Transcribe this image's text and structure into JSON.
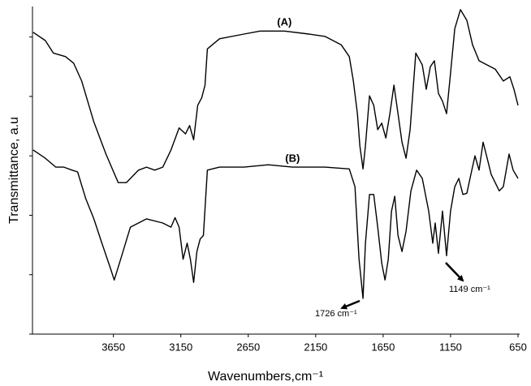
{
  "chart_data": {
    "type": "line",
    "xlabel": "Wavenumbers,cm⁻¹",
    "ylabel": "Transmittance, a.u",
    "xlim": [
      4250,
      650
    ],
    "xticks": [
      3650,
      3150,
      2650,
      2150,
      1650,
      1150,
      650
    ],
    "ylim": [
      0,
      5.5
    ],
    "yticks": [
      0,
      1,
      2,
      3,
      4,
      5
    ],
    "series": [
      {
        "name": "(A)",
        "color": "#000000",
        "x": [
          4245,
          4155,
          4095,
          4005,
          3945,
          3885,
          3795,
          3705,
          3614,
          3554,
          3464,
          3404,
          3344,
          3284,
          3223,
          3163,
          3115,
          3085,
          3055,
          3025,
          2995,
          2971,
          2953,
          2863,
          2682,
          2562,
          2382,
          2201,
          2081,
          1961,
          1901,
          1871,
          1841,
          1823,
          1799,
          1781,
          1751,
          1720,
          1690,
          1660,
          1630,
          1600,
          1570,
          1540,
          1510,
          1480,
          1450,
          1408,
          1360,
          1330,
          1300,
          1270,
          1240,
          1210,
          1180,
          1150,
          1119,
          1077,
          1029,
          987,
          939,
          879,
          819,
          759,
          710,
          680,
          650
        ],
        "values": [
          5.08,
          4.94,
          4.73,
          4.67,
          4.56,
          4.26,
          3.57,
          3.03,
          2.55,
          2.55,
          2.76,
          2.81,
          2.76,
          2.81,
          3.1,
          3.47,
          3.37,
          3.51,
          3.27,
          3.85,
          3.98,
          4.19,
          4.8,
          4.97,
          5.05,
          5.1,
          5.1,
          5.05,
          5.01,
          4.87,
          4.67,
          4.26,
          3.71,
          3.17,
          2.78,
          3.17,
          4.01,
          3.85,
          3.44,
          3.55,
          3.3,
          3.71,
          4.19,
          3.71,
          3.23,
          2.96,
          3.44,
          4.73,
          4.53,
          4.12,
          4.5,
          4.6,
          4.05,
          3.92,
          3.71,
          4.39,
          5.14,
          5.46,
          5.28,
          4.87,
          4.6,
          4.53,
          4.46,
          4.26,
          4.33,
          4.12,
          3.85
        ]
      },
      {
        "name": "(B)",
        "color": "#000000",
        "x": [
          4245,
          4155,
          4077,
          4017,
          3957,
          3915,
          3855,
          3795,
          3735,
          3674,
          3644,
          3596,
          3524,
          3404,
          3284,
          3223,
          3193,
          3163,
          3133,
          3103,
          3079,
          3055,
          3031,
          3007,
          2983,
          2953,
          2863,
          2682,
          2502,
          2322,
          2081,
          1901,
          1859,
          1829,
          1799,
          1781,
          1751,
          1720,
          1690,
          1660,
          1636,
          1612,
          1588,
          1564,
          1540,
          1510,
          1480,
          1444,
          1402,
          1360,
          1312,
          1282,
          1264,
          1240,
          1210,
          1180,
          1150,
          1119,
          1089,
          1059,
          1029,
          999,
          969,
          939,
          909,
          879,
          849,
          819,
          789,
          759,
          716,
          686,
          650
        ],
        "values": [
          3.1,
          2.96,
          2.81,
          2.81,
          2.76,
          2.73,
          2.28,
          1.94,
          1.53,
          1.12,
          0.91,
          1.26,
          1.8,
          1.94,
          1.87,
          1.8,
          1.96,
          1.8,
          1.26,
          1.53,
          1.26,
          0.87,
          1.39,
          1.6,
          1.66,
          2.76,
          2.81,
          2.81,
          2.85,
          2.81,
          2.81,
          2.78,
          2.48,
          1.26,
          0.6,
          1.53,
          2.35,
          2.35,
          1.8,
          1.19,
          0.91,
          1.26,
          2.07,
          2.32,
          1.66,
          1.39,
          1.73,
          2.41,
          2.76,
          2.62,
          2.07,
          1.53,
          1.87,
          1.36,
          2.07,
          1.32,
          2.07,
          2.48,
          2.62,
          2.35,
          2.37,
          2.69,
          3.0,
          2.76,
          3.23,
          2.96,
          2.69,
          2.55,
          2.41,
          2.48,
          3.03,
          2.76,
          2.62
        ]
      }
    ],
    "annotations": [
      "1726 cm⁻¹",
      "1149 cm⁻¹"
    ]
  }
}
